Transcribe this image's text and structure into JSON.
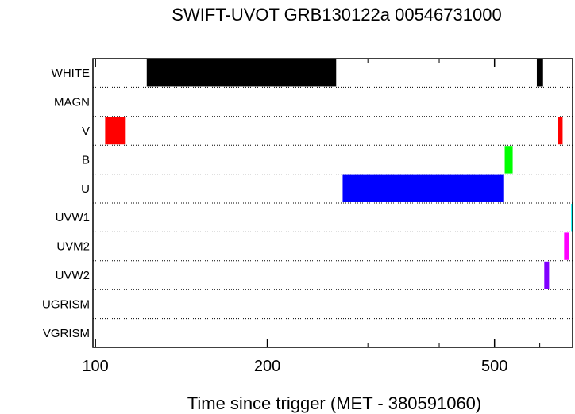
{
  "chart_data": {
    "type": "bar",
    "title": "SWIFT-UVOT GRB130122a 00546731000",
    "xlabel": "Time since trigger (MET - 380591060)",
    "ylabel": "",
    "x_scale": "log",
    "xlim": [
      99,
      685
    ],
    "x_ticks": [
      100,
      200,
      500
    ],
    "x_minor_ticks": [
      300,
      400,
      600
    ],
    "grid": "dotted horizontal row separators",
    "categories": [
      "WHITE",
      "MAGN",
      "V",
      "B",
      "U",
      "UVW1",
      "UVM2",
      "UVW2",
      "UGRISM",
      "VGRISM"
    ],
    "exposures": [
      {
        "filter": "WHITE",
        "start": 123,
        "end": 264,
        "color": "#000000"
      },
      {
        "filter": "WHITE",
        "start": 593,
        "end": 608,
        "color": "#000000"
      },
      {
        "filter": "V",
        "start": 104,
        "end": 113,
        "color": "#ff0000"
      },
      {
        "filter": "V",
        "start": 646,
        "end": 658,
        "color": "#ff0000"
      },
      {
        "filter": "B",
        "start": 521,
        "end": 538,
        "color": "#00ff00"
      },
      {
        "filter": "U",
        "start": 271,
        "end": 518,
        "color": "#0000ff"
      },
      {
        "filter": "UVW1",
        "start": 681,
        "end": 685,
        "color": "#00ffff"
      },
      {
        "filter": "UVM2",
        "start": 662,
        "end": 676,
        "color": "#ff00ff"
      },
      {
        "filter": "UVW2",
        "start": 611,
        "end": 623,
        "color": "#8000ff"
      }
    ]
  }
}
